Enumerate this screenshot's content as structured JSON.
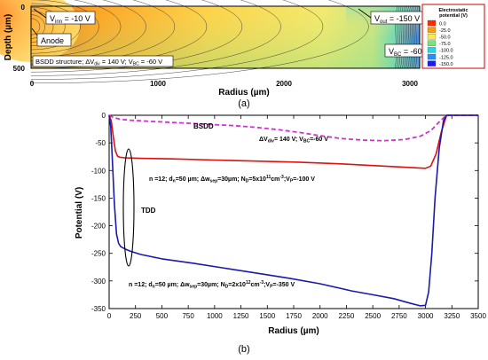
{
  "figure_a": {
    "label": "(a)",
    "ylabel": "Depth (µm)",
    "xlabel": "Radius (µm)",
    "x_ticks": [
      "0",
      "1000",
      "2000",
      "3000"
    ],
    "y_ticks": [
      "0",
      "500"
    ],
    "annotations": {
      "vinn": {
        "main": "V",
        "sub": "inn",
        "rest": " = -10 V"
      },
      "anode": "Anode",
      "vout": {
        "main": "V",
        "sub": "out",
        "rest": " = -150 V"
      },
      "vbc": {
        "main": "V",
        "sub": "BC",
        "rest": " = -60 V"
      },
      "structure": {
        "p1": "BSDD structure; ΔV",
        "s1": "div",
        "p2": " = 140 V; V",
        "s2": "BC",
        "p3": " = -60 V"
      }
    },
    "colorbar": {
      "title_lines": [
        "Electrostatic",
        "potential (V)"
      ],
      "levels": [
        "0.0",
        "-25.0",
        "-50.0",
        "-75.0",
        "-100.0",
        "-125.0",
        "-150.0"
      ],
      "colors": [
        "#ff2a00",
        "#ff9a00",
        "#ffe84a",
        "#7fe07f",
        "#2ad4e0",
        "#2a8aff",
        "#1a1aff"
      ]
    }
  },
  "chart_data": {
    "type": "line",
    "figure_label": "(b)",
    "xlabel": "Radius (µm)",
    "ylabel": "Potential (V)",
    "xlim": [
      0,
      3500
    ],
    "ylim": [
      -350,
      0
    ],
    "x_ticks": [
      0,
      250,
      500,
      750,
      1000,
      1250,
      1500,
      1750,
      2000,
      2250,
      2500,
      2750,
      3000,
      3250,
      3500
    ],
    "y_ticks": [
      0,
      -50,
      -100,
      -150,
      -200,
      -250,
      -300,
      -350
    ],
    "series": [
      {
        "name": "BSDD",
        "color": "#cc33cc",
        "style": "dashed",
        "x": [
          0,
          30,
          60,
          100,
          200,
          400,
          600,
          800,
          1000,
          1200,
          1400,
          1600,
          1800,
          2000,
          2200,
          2400,
          2600,
          2800,
          2950,
          3050,
          3120,
          3180,
          3220,
          3500
        ],
        "y": [
          0,
          -3,
          -5,
          -7,
          -9,
          -11,
          -13,
          -15,
          -17,
          -19,
          -22,
          -26,
          -31,
          -37,
          -42,
          -45,
          -46,
          -44,
          -38,
          -28,
          -14,
          -3,
          0,
          0
        ]
      },
      {
        "name": "red",
        "color": "#dd1111",
        "style": "solid",
        "x": [
          0,
          20,
          40,
          60,
          80,
          100,
          150,
          300,
          600,
          1000,
          1400,
          1800,
          2200,
          2600,
          2900,
          3000,
          3050,
          3100,
          3150,
          3200,
          3500
        ],
        "y": [
          0,
          -10,
          -40,
          -65,
          -74,
          -76,
          -77,
          -78,
          -79,
          -81,
          -83,
          -85,
          -88,
          -92,
          -95,
          -96,
          -92,
          -70,
          -30,
          0,
          0
        ]
      },
      {
        "name": "TDD",
        "color": "#1a1aaa",
        "style": "solid",
        "x": [
          0,
          15,
          30,
          50,
          70,
          90,
          110,
          150,
          200,
          300,
          500,
          800,
          1100,
          1400,
          1700,
          2000,
          2300,
          2500,
          2700,
          2850,
          2950,
          3000,
          3030,
          3060,
          3090,
          3130,
          3170,
          3200,
          3500
        ],
        "y": [
          0,
          -20,
          -80,
          -160,
          -215,
          -232,
          -238,
          -242,
          -246,
          -252,
          -260,
          -268,
          -277,
          -286,
          -295,
          -305,
          -318,
          -325,
          -332,
          -340,
          -345,
          -344,
          -320,
          -250,
          -150,
          -60,
          -10,
          0,
          0
        ]
      }
    ],
    "annotations": {
      "bsdd": "BSDD",
      "tdd": "TDD",
      "div_params": {
        "p1": "ΔV",
        "s1": "div",
        "p2": "= 140 V; V",
        "s2": "BC",
        "p3": "=-60 V"
      },
      "red_params": {
        "p1": "n =12; d",
        "s1": "n",
        "p2": "=50 µm; Δw",
        "s2": "sep",
        "p3": "=30µm; N",
        "s3": "D",
        "p4": "=5x10",
        "sup1": "11",
        "p5": "cm",
        "sup2": "-3",
        "p6": ";V",
        "s4": "P",
        "p7": "=-100 V"
      },
      "blue_params": {
        "p1": "n =12; d",
        "s1": "n",
        "p2": "=50 µm; Δw",
        "s2": "sep",
        "p3": "=30µm; N",
        "s3": "D",
        "p4": "=2x10",
        "sup1": "12",
        "p5": "cm",
        "sup2": "-3",
        "p6": ";V",
        "s4": "P",
        "p7": "=-350 V"
      }
    }
  }
}
